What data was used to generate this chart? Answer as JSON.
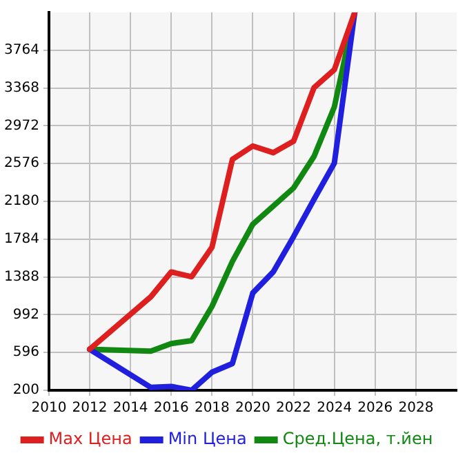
{
  "chart_data": {
    "type": "line",
    "x": [
      2012,
      2015,
      2016,
      2017,
      2018,
      2019,
      2020,
      2021,
      2022,
      2023,
      2024,
      2025
    ],
    "series": [
      {
        "name": "Max Цена",
        "color": "#dd1f1f",
        "values": [
          630,
          1180,
          1440,
          1390,
          1700,
          2620,
          2760,
          2690,
          2810,
          3370,
          3560,
          4160
        ]
      },
      {
        "name": "Min Цена",
        "color": "#1f1fdd",
        "values": [
          630,
          230,
          240,
          200,
          390,
          480,
          1220,
          1440,
          1810,
          2200,
          2580,
          4160
        ]
      },
      {
        "name": "Сред.Цена, т.йен",
        "color": "#118811",
        "values": [
          630,
          610,
          690,
          720,
          1080,
          1550,
          1940,
          2130,
          2320,
          2650,
          3170,
          4160
        ]
      }
    ],
    "xlim": [
      2010,
      2030
    ],
    "xticks": [
      2010,
      2012,
      2014,
      2016,
      2018,
      2020,
      2022,
      2024,
      2026,
      2028
    ],
    "ylim": [
      200,
      4160
    ],
    "yticks": [
      200,
      596,
      992,
      1388,
      1784,
      2180,
      2576,
      2972,
      3368,
      3764
    ],
    "grid": true,
    "legend": "bottom",
    "marker": "none",
    "line_style": "solid"
  }
}
